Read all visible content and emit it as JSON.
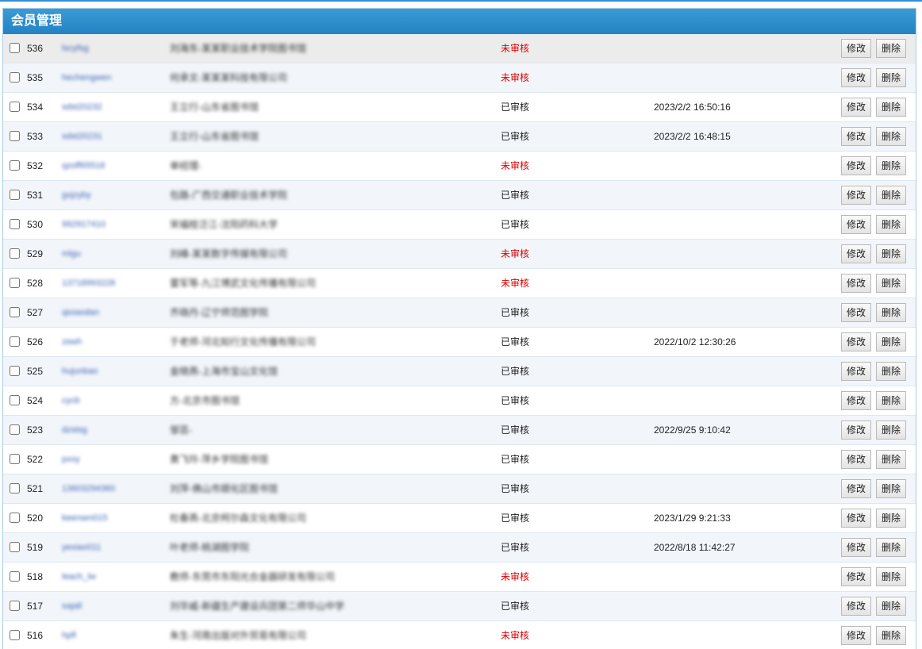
{
  "panel": {
    "title": "会员管理"
  },
  "labels": {
    "edit": "修改",
    "delete": "删除"
  },
  "colors": {
    "header": "#2482c3",
    "pending": "#e00000",
    "link": "#3b62b3"
  },
  "rows": [
    {
      "id": "536",
      "username": "lscyfsg",
      "unit": "刘海东-某某职业技术学院图书馆",
      "status": "未审核",
      "status_type": "pending",
      "time": ""
    },
    {
      "id": "535",
      "username": "hechengwen",
      "unit": "何承文-某某某科技有限公司",
      "status": "未审核",
      "status_type": "pending",
      "time": ""
    },
    {
      "id": "534",
      "username": "sdst20232",
      "unit": "王立行-山东省图书馆",
      "status": "已审核",
      "status_type": "approved",
      "time": "2023/2/2 16:50:16"
    },
    {
      "id": "533",
      "username": "sdst20231",
      "unit": "王立行-山东省图书馆",
      "status": "已审核",
      "status_type": "approved",
      "time": "2023/2/2 16:48:15"
    },
    {
      "id": "532",
      "username": "qzoff65518",
      "unit": "单经理-",
      "status": "未审核",
      "status_type": "pending",
      "time": ""
    },
    {
      "id": "531",
      "username": "gxjzyby",
      "unit": "包路-广西交通职业技术学院",
      "status": "已审核",
      "status_type": "approved",
      "time": ""
    },
    {
      "id": "530",
      "username": "992917410",
      "unit": "宋福桂泛江-沈阳药科大学",
      "status": "已审核",
      "status_type": "approved",
      "time": ""
    },
    {
      "id": "529",
      "username": "mlgu",
      "unit": "刘峰-某某数字传媒有限公司",
      "status": "未审核",
      "status_type": "pending",
      "time": ""
    },
    {
      "id": "528",
      "username": "13718993228",
      "unit": "雷军等-九江博武文化传播有限公司",
      "status": "未审核",
      "status_type": "pending",
      "time": ""
    },
    {
      "id": "527",
      "username": "qixiaodan",
      "unit": "齐晓丹-辽宁师范图学院",
      "status": "已审核",
      "status_type": "approved",
      "time": ""
    },
    {
      "id": "526",
      "username": "zswh",
      "unit": "于老师-河北知行文化传播有限公司",
      "status": "已审核",
      "status_type": "approved",
      "time": "2022/10/2 12:30:26"
    },
    {
      "id": "525",
      "username": "hujunbao",
      "unit": "金晓燕-上海市宝山文化馆",
      "status": "已审核",
      "status_type": "approved",
      "time": ""
    },
    {
      "id": "524",
      "username": "cycb",
      "unit": "方-北京市图书馆",
      "status": "已审核",
      "status_type": "approved",
      "time": ""
    },
    {
      "id": "523",
      "username": "dzstsg",
      "unit": "邹芸-",
      "status": "已审核",
      "status_type": "approved",
      "time": "2022/9/25 9:10:42"
    },
    {
      "id": "522",
      "username": "pxxy",
      "unit": "黄飞玲-萍乡学院图书馆",
      "status": "已审核",
      "status_type": "approved",
      "time": ""
    },
    {
      "id": "521",
      "username": "13603294360",
      "unit": "刘萍-佛山市顺化区图书馆",
      "status": "已审核",
      "status_type": "approved",
      "time": ""
    },
    {
      "id": "520",
      "username": "keersen015",
      "unit": "杜春燕-北京柯尔森文化有限公司",
      "status": "已审核",
      "status_type": "approved",
      "time": "2023/1/29 9:21:33"
    },
    {
      "id": "519",
      "username": "yexiao011",
      "unit": "叶老师-桃湖图学院",
      "status": "已审核",
      "status_type": "approved",
      "time": "2022/8/18 11:42:27"
    },
    {
      "id": "518",
      "username": "leach_lw",
      "unit": "教师-东莞市东阳光合金器研发有限公司",
      "status": "未审核",
      "status_type": "pending",
      "time": ""
    },
    {
      "id": "517",
      "username": "sajall",
      "unit": "刘华威-新疆生产建设兵团第二师华山中学",
      "status": "已审核",
      "status_type": "approved",
      "time": ""
    },
    {
      "id": "516",
      "username": "hpfl",
      "unit": "朱生-河南出版对外贸易有限公司",
      "status": "未审核",
      "status_type": "pending",
      "time": ""
    }
  ]
}
